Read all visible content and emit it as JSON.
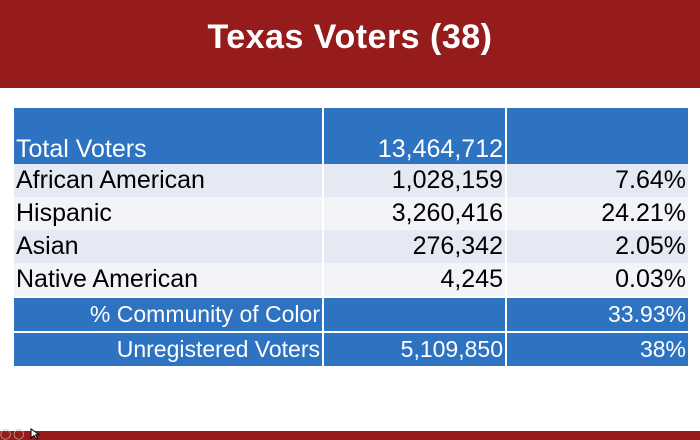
{
  "slide": {
    "title": "Texas Voters (38)",
    "colors": {
      "title_bar": "#961c1c",
      "table_header": "#2e73c2",
      "row_odd": "#e4e9f3",
      "row_even": "#f2f4f8"
    }
  },
  "table": {
    "header": {
      "label": "Total Voters",
      "count": "13,464,712",
      "percent": ""
    },
    "rows": [
      {
        "label": "African American",
        "count": "1,028,159",
        "percent": "7.64%"
      },
      {
        "label": "Hispanic",
        "count": "3,260,416",
        "percent": "24.21%"
      },
      {
        "label": "Asian",
        "count": "276,342",
        "percent": "2.05%"
      },
      {
        "label": "Native American",
        "count": "4,245",
        "percent": "0.03%"
      }
    ],
    "summary": [
      {
        "label": "% Community of Color",
        "count": "",
        "percent": "33.93%"
      },
      {
        "label": "Unregistered Voters",
        "count": "5,109,850",
        "percent": "38%"
      }
    ]
  }
}
